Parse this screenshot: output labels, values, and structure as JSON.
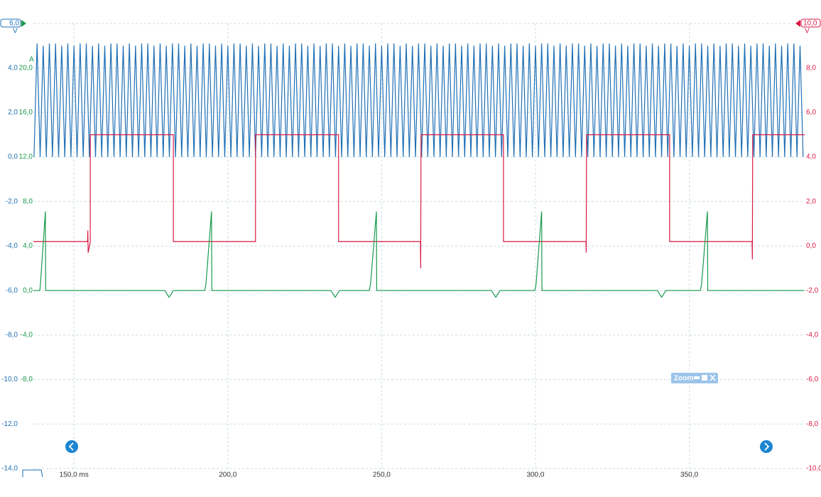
{
  "chart_data": {
    "type": "line",
    "xlim": [
      136.8,
      387.5
    ],
    "xticks": [
      {
        "value": 150,
        "label": "150,0 ms"
      },
      {
        "value": 200,
        "label": "200,0"
      },
      {
        "value": 250,
        "label": "250,0"
      },
      {
        "value": 300,
        "label": "300,0"
      },
      {
        "value": 350,
        "label": "350,0"
      }
    ],
    "ylim": [
      -14,
      6
    ],
    "y_unit": "V",
    "yticks": [
      {
        "value": -14,
        "label": "-14,0"
      },
      {
        "value": -12,
        "label": "-12,0"
      },
      {
        "value": -10,
        "label": "-10,0"
      },
      {
        "value": -8,
        "label": "-8,0"
      },
      {
        "value": -6,
        "label": "-6,0"
      },
      {
        "value": -4,
        "label": "-4,0"
      },
      {
        "value": -2,
        "label": "-2,0"
      },
      {
        "value": 0,
        "label": "0,0"
      },
      {
        "value": 2,
        "label": "2,0"
      },
      {
        "value": 4,
        "label": "4,0"
      },
      {
        "value": 6,
        "label": "6,0"
      }
    ],
    "y2lim": [
      -10,
      10
    ],
    "y2_unit": "V",
    "y2ticks": [
      {
        "value": -10,
        "label": "-10,0"
      },
      {
        "value": -8,
        "label": "-8,0"
      },
      {
        "value": -6,
        "label": "-6,0"
      },
      {
        "value": -4,
        "label": "-4,0"
      },
      {
        "value": -2,
        "label": "-2,0"
      },
      {
        "value": 0,
        "label": "0,0"
      },
      {
        "value": 2,
        "label": "2,0"
      },
      {
        "value": 4,
        "label": "4,0"
      },
      {
        "value": 6,
        "label": "6,0"
      },
      {
        "value": 8,
        "label": "8,0"
      },
      {
        "value": 10,
        "label": "10,0"
      }
    ],
    "y3lim": [
      -16,
      24
    ],
    "y3_unit": "A",
    "y3ticks": [
      {
        "value": -8,
        "label": "-8,0"
      },
      {
        "value": -4,
        "label": "-4,0"
      },
      {
        "value": 0,
        "label": "0,0"
      },
      {
        "value": 4,
        "label": "4,0"
      },
      {
        "value": 8,
        "label": "8,0"
      },
      {
        "value": 12,
        "label": "12,0"
      },
      {
        "value": 16,
        "label": "16,0"
      },
      {
        "value": 20,
        "label": "20,0"
      }
    ],
    "grid": true,
    "zoom_label": "Zoom",
    "series": [
      {
        "color": "#1f6fb4",
        "axis": "y",
        "x": [
          137,
          138,
          139,
          140,
          141,
          142,
          143,
          144,
          145,
          146,
          147,
          148,
          149,
          150,
          151,
          152,
          153,
          154,
          155,
          156,
          157,
          158,
          159,
          160,
          161,
          162,
          163,
          164,
          165,
          166,
          167,
          168,
          169,
          170,
          171,
          172,
          173,
          174,
          175,
          176,
          177,
          178,
          179,
          180,
          181,
          182,
          183,
          184,
          185,
          186,
          187,
          188,
          189,
          190,
          191,
          192,
          193,
          194,
          195,
          196,
          197,
          198,
          199,
          200,
          201,
          202,
          203,
          204,
          205,
          206,
          207,
          208,
          209,
          210,
          211,
          212,
          213,
          214,
          215,
          216,
          217,
          218,
          219,
          220,
          221,
          222,
          223,
          224,
          225,
          226,
          227,
          228,
          229,
          230,
          231,
          232,
          233,
          234,
          235,
          236,
          237,
          238,
          239,
          240,
          241,
          242,
          243,
          244,
          245,
          246,
          247,
          248,
          249,
          250,
          251,
          252,
          253,
          254,
          255,
          256,
          257,
          258,
          259,
          260,
          261,
          262,
          263,
          264,
          265,
          266,
          267,
          268,
          269,
          270,
          271,
          272,
          273,
          274,
          275,
          276,
          277,
          278,
          279,
          280,
          281,
          282,
          283,
          284,
          285,
          286,
          287,
          288,
          289,
          290,
          291,
          292,
          293,
          294,
          295,
          296,
          297,
          298,
          299,
          300,
          301,
          302,
          303,
          304,
          305,
          306,
          307,
          308,
          309,
          310,
          311,
          312,
          313,
          314,
          315,
          316,
          317,
          318,
          319,
          320,
          321,
          322,
          323,
          324,
          325,
          326,
          327,
          328,
          329,
          330,
          331,
          332,
          333,
          334,
          335,
          336,
          337,
          338,
          339,
          340,
          341,
          342,
          343,
          344,
          345,
          346,
          347,
          348,
          349,
          350,
          351,
          352,
          353,
          354,
          355,
          356,
          357,
          358,
          359,
          360,
          361,
          362,
          363,
          364,
          365,
          366,
          367,
          368,
          369,
          370,
          371,
          372,
          373,
          374,
          375,
          376,
          377,
          378,
          379,
          380,
          381,
          382,
          383,
          384,
          385,
          386,
          387
        ],
        "values": [
          0,
          5.1,
          0,
          5.0,
          0,
          5.1,
          0,
          5.1,
          0,
          5.0,
          0,
          5.1,
          0,
          5.0,
          0,
          5.1,
          0,
          5.1,
          0,
          5.0,
          0,
          5.1,
          0,
          5.0,
          0,
          5.1,
          0,
          5.1,
          0,
          5.0,
          0,
          5.1,
          0,
          5.0,
          0,
          5.1,
          0,
          5.1,
          0,
          5.0,
          0,
          5.1,
          0,
          5.0,
          0,
          5.1,
          0,
          5.1,
          0,
          5.0,
          0,
          5.1,
          0,
          5.0,
          0,
          5.1,
          0,
          5.1,
          0,
          5.0,
          0,
          5.1,
          0,
          5.0,
          0,
          5.1,
          0,
          5.1,
          0,
          5.0,
          0,
          5.1,
          0,
          5.0,
          0,
          5.1,
          0,
          5.1,
          0,
          5.0,
          0,
          5.1,
          0,
          5.0,
          0,
          5.1,
          0,
          5.1,
          0,
          5.0,
          0,
          5.1,
          0,
          5.0,
          0,
          5.1,
          0,
          5.1,
          0,
          5.0,
          0,
          5.1,
          0,
          5.0,
          0,
          5.1,
          0,
          5.1,
          0,
          5.0,
          0,
          5.1,
          0,
          5.0,
          0,
          5.1,
          0,
          5.1,
          0,
          5.0,
          0,
          5.1,
          0,
          5.0,
          0,
          5.1,
          0,
          5.1,
          0,
          5.0,
          0,
          5.1,
          0,
          5.0,
          0,
          5.1,
          0,
          5.1,
          0,
          5.0,
          0,
          5.1,
          0,
          5.0,
          0,
          5.1,
          0,
          5.1,
          0,
          5.0,
          0,
          5.1,
          0,
          5.0,
          0,
          5.1,
          0,
          5.1,
          0,
          5.0,
          0,
          5.1,
          0,
          5.0,
          0,
          5.1,
          0,
          5.1,
          0,
          5.0,
          0,
          5.1,
          0,
          5.0,
          0,
          5.1,
          0,
          5.1,
          0,
          5.0,
          0,
          5.1,
          0,
          5.0,
          0,
          5.1,
          0,
          5.1,
          0,
          5.0,
          0,
          5.1,
          0,
          5.0,
          0,
          5.1,
          0,
          5.1,
          0,
          5.0,
          0,
          5.1,
          0,
          5.0,
          0,
          5.1,
          0,
          5.1,
          0,
          5.0,
          0,
          5.1,
          0,
          5.0,
          0,
          5.1,
          0,
          5.1,
          0,
          5.0,
          0,
          5.1,
          0,
          5.0,
          0,
          5.1,
          0,
          5.1,
          0,
          5.0,
          0,
          5.1,
          0,
          5.0,
          0,
          5.1,
          0,
          5.1,
          0,
          5.0,
          0,
          5.1,
          0,
          5.0,
          0,
          5.1,
          0,
          5.1,
          0,
          5.0,
          0
        ]
      },
      {
        "color": "#d81b45",
        "axis": "y2",
        "x": [
          136.8,
          154.4,
          154.5,
          154.6,
          155.3,
          155.3,
          182.3,
          182.3,
          209.0,
          209.0,
          236.0,
          236.0,
          262.6,
          262.7,
          262.8,
          289.6,
          289.6,
          316.4,
          316.5,
          316.6,
          343.6,
          343.6,
          370.4,
          370.5,
          370.6,
          387.5
        ],
        "values": [
          0.2,
          0.2,
          0.7,
          -0.3,
          0.2,
          5.0,
          5.0,
          0.2,
          0.2,
          5.0,
          5.0,
          0.2,
          0.2,
          -1.0,
          5.0,
          5.0,
          0.2,
          0.2,
          -0.3,
          5.0,
          5.0,
          0.2,
          0.2,
          -0.6,
          5.0,
          5.0
        ]
      },
      {
        "color": "#1a9a4c",
        "axis": "y3",
        "x": [
          136.8,
          138.9,
          139.1,
          140.7,
          140.8,
          141.5,
          179.5,
          180.9,
          182.3,
          192.5,
          192.9,
          194.7,
          194.8,
          196.0,
          233.5,
          234.9,
          236.3,
          246.0,
          246.4,
          248.3,
          248.4,
          250.0,
          285.7,
          287.1,
          288.5,
          299.8,
          300.2,
          302.0,
          302.1,
          304,
          339.6,
          341.0,
          342.4,
          353.6,
          354.0,
          355.9,
          356.0,
          358,
          387.4
        ],
        "values": [
          0,
          0,
          0.6,
          7.1,
          0,
          0,
          0,
          -0.6,
          0,
          0,
          0.6,
          7.1,
          0,
          0,
          0,
          -0.6,
          0,
          0,
          0.6,
          7.1,
          0,
          0,
          0,
          -0.6,
          0,
          0,
          0.6,
          7.1,
          0,
          0,
          0,
          -0.6,
          0,
          0,
          0.6,
          7.1,
          0,
          0,
          0
        ]
      }
    ]
  }
}
